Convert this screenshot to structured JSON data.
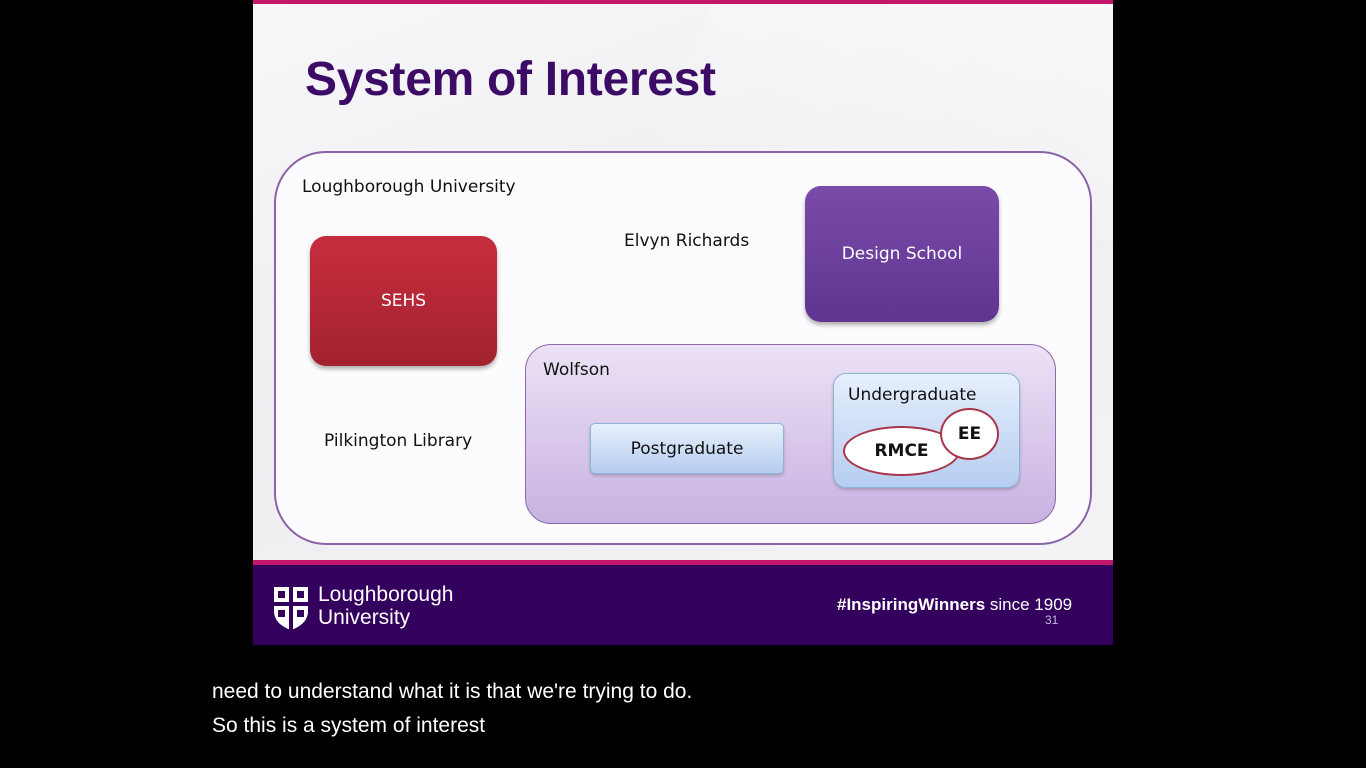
{
  "slide": {
    "title": "System of Interest",
    "labels": {
      "university": "Loughborough University",
      "elvyn": "Elvyn Richards",
      "pilkington": "Pilkington Library",
      "wolfson": "Wolfson",
      "undergraduate": "Undergraduate"
    },
    "boxes": {
      "sehs": "SEHS",
      "design_school": "Design School",
      "postgraduate": "Postgraduate",
      "rmce": "RMCE",
      "ee": "EE"
    },
    "footer": {
      "brand_line1": "Loughborough",
      "brand_line2": "University",
      "tagline_bold": "#InspiringWinners",
      "tagline_rest": " since 1909",
      "page_number": "31"
    },
    "colors": {
      "title": "#3b0b66",
      "accent": "#c4176b",
      "footer_bg": "#34005e",
      "sehs": "#b62736",
      "design_school": "#6d40a0"
    },
    "icons": [
      "university-crest-icon"
    ]
  },
  "captions": [
    "need to understand what it is that we're trying to do.",
    "So this is a system of interest"
  ]
}
